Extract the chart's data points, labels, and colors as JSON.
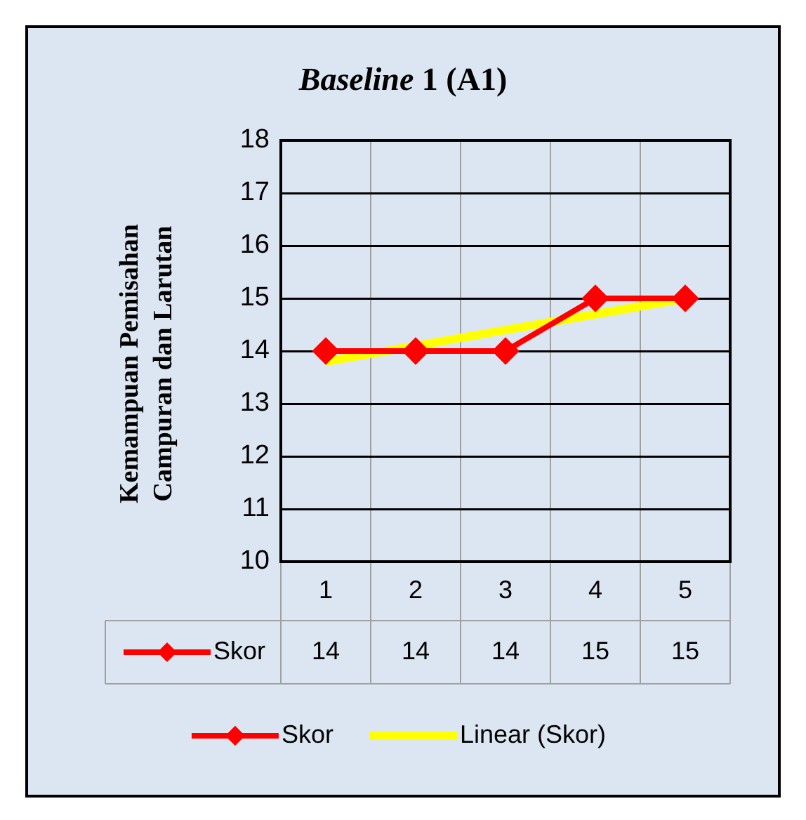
{
  "chart_data": {
    "type": "line",
    "title": "Baseline 1 (A1)",
    "ylabel": "Kemampuan Pemisahan Campuran dan Larutan",
    "categories": [
      "1",
      "2",
      "3",
      "4",
      "5"
    ],
    "series": [
      {
        "name": "Skor",
        "color": "#ff0000",
        "values": [
          14,
          14,
          14,
          15,
          15
        ],
        "value_labels": [
          "14",
          "14",
          "14",
          "15",
          "15"
        ],
        "marker": "diamond"
      },
      {
        "name": "Linear (Skor)",
        "color": "#ffff00",
        "x": [
          "1",
          "5"
        ],
        "values": [
          13.8,
          15.0
        ],
        "marker": "none"
      }
    ],
    "ylim": [
      10,
      18
    ],
    "yticks": [
      10,
      11,
      12,
      13,
      14,
      15,
      16,
      17,
      18
    ],
    "grid": true,
    "legend": "bottom"
  }
}
